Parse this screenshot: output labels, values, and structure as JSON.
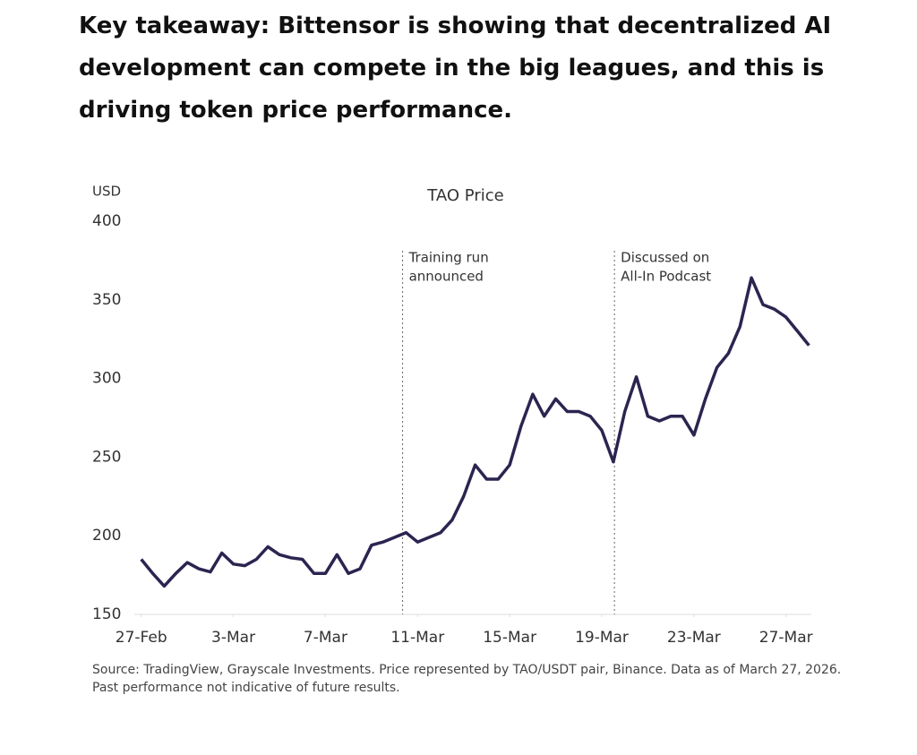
{
  "heading": "Key takeaway: Bittensor is showing that decentralized AI development can compete in the big leagues, and this is driving token price performance.",
  "chart_data": {
    "type": "line",
    "title": "TAO Price",
    "y_label": "USD",
    "x": [
      0,
      0.5,
      1,
      1.5,
      2,
      2.5,
      3,
      3.5,
      4,
      4.5,
      5,
      5.5,
      6,
      6.5,
      7,
      7.5,
      8,
      8.5,
      9,
      9.5,
      10,
      10.5,
      11,
      11.5,
      12,
      12.5,
      13,
      13.5,
      14,
      14.5,
      15,
      15.5,
      16,
      16.5,
      17,
      17.5,
      18,
      18.5,
      19,
      19.5,
      20,
      20.5,
      21,
      21.5,
      22,
      22.5,
      23,
      23.5,
      24,
      24.5,
      25,
      25.5,
      26,
      26.5,
      27,
      27.5,
      28,
      28.5,
      29
    ],
    "series": [
      {
        "name": "TAO/USDT",
        "color": "#2a2550",
        "values": [
          185,
          176,
          168,
          176,
          183,
          179,
          177,
          189,
          182,
          181,
          185,
          193,
          188,
          186,
          185,
          176,
          176,
          188,
          176,
          179,
          194,
          196,
          199,
          202,
          196,
          199,
          202,
          210,
          225,
          245,
          236,
          236,
          245,
          270,
          290,
          276,
          287,
          279,
          279,
          276,
          267,
          247,
          279,
          301,
          276,
          273,
          276,
          276,
          264,
          287,
          307,
          316,
          333,
          364,
          347,
          344,
          339,
          330,
          321
        ]
      }
    ],
    "xlim": [
      -0.3,
      29.1
    ],
    "ylim": [
      150,
      400
    ],
    "yticks": [
      150,
      200,
      250,
      300,
      350,
      400
    ],
    "xticks": [
      {
        "value": 0,
        "label": "27-Feb"
      },
      {
        "value": 4,
        "label": "3-Mar"
      },
      {
        "value": 8,
        "label": "7-Mar"
      },
      {
        "value": 12,
        "label": "11-Mar"
      },
      {
        "value": 16,
        "label": "15-Mar"
      },
      {
        "value": 20,
        "label": "19-Mar"
      },
      {
        "value": 24,
        "label": "23-Mar"
      },
      {
        "value": 28,
        "label": "27-Mar"
      }
    ],
    "grid": false,
    "annotations": [
      {
        "x": 11.35,
        "label": [
          "Training run",
          "announced"
        ]
      },
      {
        "x": 20.55,
        "label": [
          "Discussed on",
          "All-In Podcast"
        ]
      }
    ],
    "source": "Source: TradingView, Grayscale Investments. Price represented by TAO/USDT pair, Binance. Data as of March 27, 2026. Past performance not indicative of future results."
  }
}
